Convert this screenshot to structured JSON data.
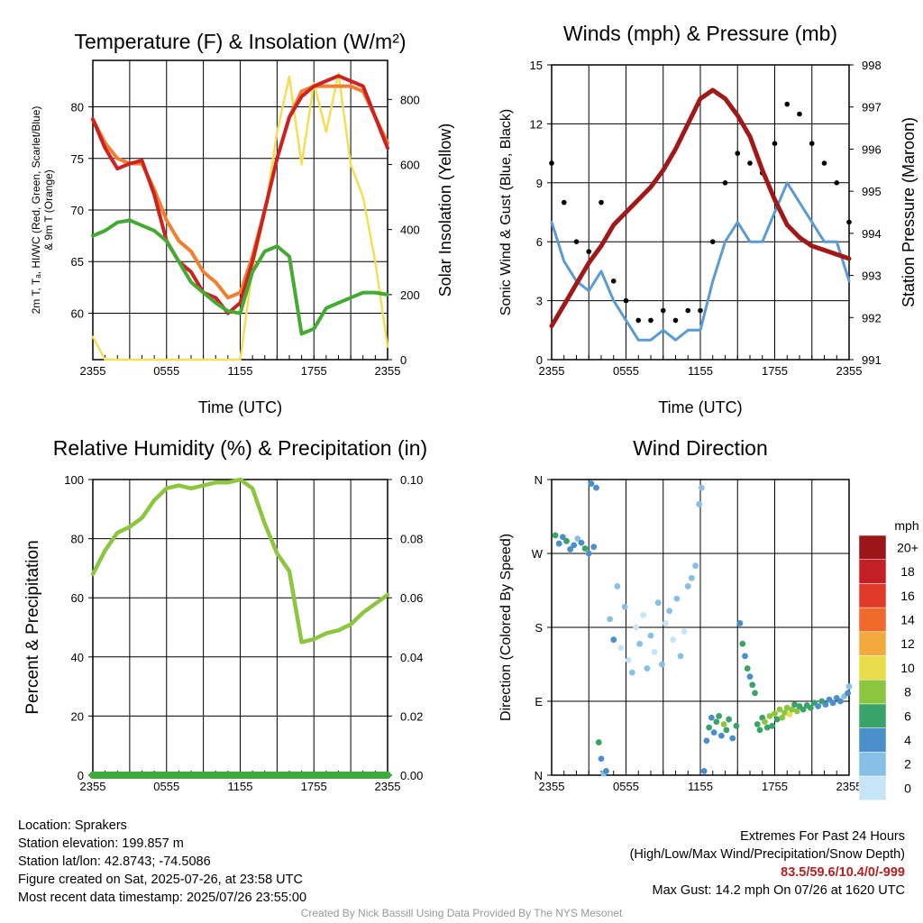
{
  "chart_data": [
    {
      "type": "line",
      "title": "Temperature (F) & Insolation (W/m²)",
      "xlabel": "Time (UTC)",
      "ylabel_left_line1": "2m T, Tₐ, HI/WC (Red, Green, Scarlet/Blue)",
      "ylabel_left_line2": "& 9m T (Orange)",
      "ylabel_right": "Solar Insolation (Yellow)",
      "xticks": [
        "2355",
        "0555",
        "1155",
        "1755",
        "2355"
      ],
      "ylim_left": [
        55.5,
        84.5
      ],
      "yticks_left": [
        60,
        65,
        70,
        75,
        80
      ],
      "ylim_right": [
        0,
        920
      ],
      "yticks_right": [
        0,
        200,
        400,
        600,
        800
      ],
      "x": [
        0,
        1,
        2,
        3,
        4,
        5,
        6,
        7,
        8,
        9,
        10,
        11,
        12,
        13,
        14,
        15,
        16,
        17,
        18,
        19,
        20,
        21,
        22,
        23,
        24
      ],
      "series": [
        {
          "color": "#cc2222",
          "axis": "left",
          "values": [
            78.8,
            76,
            74,
            74.5,
            74.8,
            71.5,
            67,
            65,
            64,
            62,
            61.5,
            60,
            61,
            65,
            70,
            75,
            79,
            81,
            82,
            82.5,
            83,
            82.5,
            82,
            79,
            76
          ]
        },
        {
          "color": "#f08030",
          "axis": "left",
          "values": [
            78.8,
            76.5,
            75,
            74.5,
            74.5,
            72,
            69,
            67,
            66,
            64,
            63,
            61.5,
            62,
            65.5,
            70,
            75,
            79,
            81.5,
            82,
            82,
            82,
            82,
            81.5,
            79,
            76.5
          ]
        },
        {
          "color": "#44aa33",
          "axis": "left",
          "values": [
            67.5,
            68,
            68.8,
            69,
            68.5,
            68,
            67,
            65,
            63,
            62,
            61,
            60.2,
            60,
            64,
            66,
            66.5,
            65.5,
            58,
            58.5,
            60.5,
            61,
            61.5,
            62,
            62,
            61.8
          ]
        },
        {
          "color": "#f5dd55",
          "axis": "right",
          "values": [
            70,
            0,
            0,
            0,
            0,
            0,
            0,
            0,
            0,
            0,
            0,
            0,
            0,
            280,
            450,
            700,
            870,
            600,
            850,
            700,
            880,
            600,
            500,
            300,
            40
          ]
        }
      ]
    },
    {
      "type": "line",
      "title": "Winds (mph) & Pressure (mb)",
      "xlabel": "Time (UTC)",
      "ylabel_left": "Sonic Wind & Gust (Blue, Black)",
      "ylabel_right": "Station Pressure (Maroon)",
      "xticks": [
        "2355",
        "0555",
        "1155",
        "1755",
        "2355"
      ],
      "ylim_left": [
        0,
        15
      ],
      "yticks_left": [
        0,
        3,
        6,
        9,
        12,
        15
      ],
      "ylim_right": [
        991,
        998
      ],
      "yticks_right": [
        991,
        992,
        993,
        994,
        995,
        996,
        997,
        998
      ],
      "x": [
        0,
        1,
        2,
        3,
        4,
        5,
        6,
        7,
        8,
        9,
        10,
        11,
        12,
        13,
        14,
        15,
        16,
        17,
        18,
        19,
        20,
        21,
        22,
        23,
        24
      ],
      "series": [
        {
          "color": "#5b9bd5",
          "axis": "left",
          "values": [
            7,
            5,
            4,
            3.5,
            4.5,
            3,
            2,
            1,
            1,
            1.5,
            1,
            1.5,
            1.5,
            4,
            6,
            7,
            6,
            6,
            7.5,
            9,
            8,
            7,
            6,
            6,
            4
          ]
        },
        {
          "color": "#000000",
          "axis": "left",
          "values": [
            10,
            8,
            6,
            5.5,
            8,
            4,
            3,
            2,
            2,
            2.5,
            2,
            2.5,
            2.5,
            6,
            9,
            10.5,
            10,
            9.5,
            11,
            13,
            12.5,
            11,
            10,
            9,
            7
          ]
        },
        {
          "color": "#a01818",
          "axis": "right",
          "values": [
            991.8,
            992.3,
            992.8,
            993.3,
            993.7,
            994.2,
            994.5,
            994.8,
            995.1,
            995.5,
            996,
            996.6,
            997.2,
            997.4,
            997.2,
            996.8,
            996.3,
            995.5,
            994.8,
            994.2,
            993.9,
            993.7,
            993.6,
            993.5,
            993.4
          ]
        }
      ]
    },
    {
      "type": "line",
      "title": "Relative Humidity (%) & Precipitation (in)",
      "ylabel_left": "Percent & Precipitation",
      "xticks": [
        "2355",
        "0555",
        "1155",
        "1755",
        "2355"
      ],
      "ylim_left": [
        0,
        100
      ],
      "yticks_left": [
        0,
        20,
        40,
        60,
        80,
        100
      ],
      "ylim_right": [
        0,
        0.1
      ],
      "yticks_right": [
        "0.00",
        "0.02",
        "0.04",
        "0.06",
        "0.08",
        "0.10"
      ],
      "x": [
        0,
        1,
        2,
        3,
        4,
        5,
        6,
        7,
        8,
        9,
        10,
        11,
        12,
        13,
        14,
        15,
        16,
        17,
        18,
        19,
        20,
        21,
        22,
        23,
        24
      ],
      "series": [
        {
          "color": "#8cc63f",
          "axis": "left",
          "values": [
            68,
            76,
            82,
            84,
            87,
            93,
            97,
            98,
            97,
            98,
            99,
            99,
            100,
            97,
            85,
            75,
            69,
            45,
            46,
            48,
            49,
            51,
            55,
            58,
            61
          ]
        },
        {
          "color": "#3daa3d",
          "axis": "right",
          "values": [
            0,
            0,
            0,
            0,
            0,
            0,
            0,
            0,
            0,
            0,
            0,
            0,
            0,
            0,
            0,
            0,
            0,
            0,
            0,
            0,
            0,
            0,
            0,
            0,
            0
          ]
        }
      ]
    },
    {
      "type": "scatter",
      "title": "Wind Direction",
      "ylabel_left": "Direction (Colored By Speed)",
      "xticks": [
        "2355",
        "0555",
        "1155",
        "1755",
        "2355"
      ],
      "yticks_left": [
        "N",
        "E",
        "S",
        "W",
        "N"
      ],
      "ylim_left": [
        0,
        360
      ],
      "colorbar": {
        "title": "mph",
        "labels": [
          "0",
          "2",
          "4",
          "6",
          "8",
          "10",
          "12",
          "14",
          "16",
          "18",
          "20+"
        ],
        "colors": [
          "#c6e6f7",
          "#86c0e6",
          "#4a8fcc",
          "#3aa36a",
          "#8cc63f",
          "#e8dc4a",
          "#f4a93c",
          "#ef6a2a",
          "#e03a2a",
          "#c41f24",
          "#9b1618"
        ]
      },
      "points": [
        {
          "x": 0.3,
          "dir": 292,
          "speed": 6
        },
        {
          "x": 0.6,
          "dir": 282,
          "speed": 5
        },
        {
          "x": 0.9,
          "dir": 290,
          "speed": 4
        },
        {
          "x": 1.2,
          "dir": 285,
          "speed": 7
        },
        {
          "x": 1.5,
          "dir": 275,
          "speed": 4
        },
        {
          "x": 1.8,
          "dir": 280,
          "speed": 5
        },
        {
          "x": 2.1,
          "dir": 288,
          "speed": 3
        },
        {
          "x": 2.4,
          "dir": 283,
          "speed": 4
        },
        {
          "x": 2.7,
          "dir": 276,
          "speed": 6
        },
        {
          "x": 3.0,
          "dir": 270,
          "speed": 4
        },
        {
          "x": 3.2,
          "dir": 355,
          "speed": 5
        },
        {
          "x": 3.4,
          "dir": 278,
          "speed": 5
        },
        {
          "x": 3.6,
          "dir": 350,
          "speed": 4
        },
        {
          "x": 3.8,
          "dir": 40,
          "speed": 6
        },
        {
          "x": 4.0,
          "dir": 20,
          "speed": 4
        },
        {
          "x": 4.2,
          "dir": 2,
          "speed": 3
        },
        {
          "x": 4.4,
          "dir": 5,
          "speed": 4
        },
        {
          "x": 4.7,
          "dir": 190,
          "speed": 2
        },
        {
          "x": 5.0,
          "dir": 165,
          "speed": 4
        },
        {
          "x": 5.3,
          "dir": 230,
          "speed": 2
        },
        {
          "x": 5.6,
          "dir": 155,
          "speed": 1
        },
        {
          "x": 5.9,
          "dir": 205,
          "speed": 2
        },
        {
          "x": 6.2,
          "dir": 140,
          "speed": 1
        },
        {
          "x": 6.5,
          "dir": 125,
          "speed": 2
        },
        {
          "x": 6.8,
          "dir": 180,
          "speed": 1
        },
        {
          "x": 7.1,
          "dir": 160,
          "speed": 2
        },
        {
          "x": 7.4,
          "dir": 195,
          "speed": 1
        },
        {
          "x": 7.7,
          "dir": 130,
          "speed": 3
        },
        {
          "x": 8.0,
          "dir": 170,
          "speed": 2
        },
        {
          "x": 8.3,
          "dir": 150,
          "speed": 1
        },
        {
          "x": 8.6,
          "dir": 210,
          "speed": 2
        },
        {
          "x": 8.9,
          "dir": 135,
          "speed": 2
        },
        {
          "x": 9.2,
          "dir": 185,
          "speed": 1
        },
        {
          "x": 9.5,
          "dir": 200,
          "speed": 3
        },
        {
          "x": 9.8,
          "dir": 165,
          "speed": 1
        },
        {
          "x": 10.1,
          "dir": 215,
          "speed": 2
        },
        {
          "x": 10.4,
          "dir": 145,
          "speed": 2
        },
        {
          "x": 10.7,
          "dir": 175,
          "speed": 1
        },
        {
          "x": 11.0,
          "dir": 230,
          "speed": 2
        },
        {
          "x": 11.3,
          "dir": 240,
          "speed": 2
        },
        {
          "x": 11.6,
          "dir": 255,
          "speed": 3
        },
        {
          "x": 11.9,
          "dir": 330,
          "speed": 2
        },
        {
          "x": 12.1,
          "dir": 350,
          "speed": 2
        },
        {
          "x": 12.3,
          "dir": 5,
          "speed": 4
        },
        {
          "x": 12.5,
          "dir": 42,
          "speed": 5
        },
        {
          "x": 12.7,
          "dir": 58,
          "speed": 6
        },
        {
          "x": 12.9,
          "dir": 70,
          "speed": 5
        },
        {
          "x": 13.1,
          "dir": 52,
          "speed": 4
        },
        {
          "x": 13.3,
          "dir": 65,
          "speed": 7
        },
        {
          "x": 13.5,
          "dir": 72,
          "speed": 6
        },
        {
          "x": 13.7,
          "dir": 48,
          "speed": 5
        },
        {
          "x": 13.9,
          "dir": 62,
          "speed": 8
        },
        {
          "x": 14.1,
          "dir": 55,
          "speed": 6
        },
        {
          "x": 14.3,
          "dir": 68,
          "speed": 7
        },
        {
          "x": 14.6,
          "dir": 45,
          "speed": 4
        },
        {
          "x": 14.9,
          "dir": 60,
          "speed": 6
        },
        {
          "x": 15.2,
          "dir": 185,
          "speed": 5
        },
        {
          "x": 15.4,
          "dir": 160,
          "speed": 6
        },
        {
          "x": 15.6,
          "dir": 145,
          "speed": 5
        },
        {
          "x": 15.8,
          "dir": 130,
          "speed": 6
        },
        {
          "x": 16.0,
          "dir": 120,
          "speed": 5
        },
        {
          "x": 16.2,
          "dir": 110,
          "speed": 6
        },
        {
          "x": 16.4,
          "dir": 100,
          "speed": 7
        },
        {
          "x": 16.6,
          "dir": 62,
          "speed": 6
        },
        {
          "x": 16.8,
          "dir": 55,
          "speed": 7
        },
        {
          "x": 17.0,
          "dir": 70,
          "speed": 6
        },
        {
          "x": 17.2,
          "dir": 65,
          "speed": 8
        },
        {
          "x": 17.4,
          "dir": 58,
          "speed": 7
        },
        {
          "x": 17.6,
          "dir": 72,
          "speed": 8
        },
        {
          "x": 17.8,
          "dir": 60,
          "speed": 6
        },
        {
          "x": 18.0,
          "dir": 75,
          "speed": 8
        },
        {
          "x": 18.2,
          "dir": 68,
          "speed": 7
        },
        {
          "x": 18.4,
          "dir": 80,
          "speed": 9
        },
        {
          "x": 18.6,
          "dir": 70,
          "speed": 8
        },
        {
          "x": 18.8,
          "dir": 76,
          "speed": 9
        },
        {
          "x": 19.0,
          "dir": 82,
          "speed": 8
        },
        {
          "x": 19.2,
          "dir": 74,
          "speed": 10
        },
        {
          "x": 19.4,
          "dir": 80,
          "speed": 8
        },
        {
          "x": 19.6,
          "dir": 86,
          "speed": 7
        },
        {
          "x": 19.8,
          "dir": 78,
          "speed": 8
        },
        {
          "x": 20.0,
          "dir": 84,
          "speed": 7
        },
        {
          "x": 20.3,
          "dir": 80,
          "speed": 6
        },
        {
          "x": 20.6,
          "dir": 85,
          "speed": 7
        },
        {
          "x": 20.9,
          "dir": 82,
          "speed": 6
        },
        {
          "x": 21.2,
          "dir": 88,
          "speed": 6
        },
        {
          "x": 21.5,
          "dir": 84,
          "speed": 5
        },
        {
          "x": 21.8,
          "dir": 90,
          "speed": 6
        },
        {
          "x": 22.1,
          "dir": 86,
          "speed": 5
        },
        {
          "x": 22.4,
          "dir": 92,
          "speed": 5
        },
        {
          "x": 22.7,
          "dir": 88,
          "speed": 4
        },
        {
          "x": 23.0,
          "dir": 94,
          "speed": 5
        },
        {
          "x": 23.3,
          "dir": 90,
          "speed": 4
        },
        {
          "x": 23.6,
          "dir": 96,
          "speed": 3
        },
        {
          "x": 23.9,
          "dir": 100,
          "speed": 4
        },
        {
          "x": 24.0,
          "dir": 108,
          "speed": 3
        }
      ]
    }
  ],
  "footer": {
    "location": "Location: Sprakers",
    "elevation": "Station elevation: 199.857 m",
    "latlon": "Station lat/lon: 42.8743; -74.5086",
    "created": "Figure created on Sat, 2025-07-26, at 23:58 UTC",
    "recent": "Most recent data timestamp: 2025/07/26 23:55:00",
    "extremes_title": "Extremes For Past 24 Hours",
    "extremes_legend": "(High/Low/Max Wind/Precipitation/Snow Depth)",
    "extremes_values": "83.5/59.6/10.4/0/-999",
    "max_gust": "Max Gust: 14.2 mph On 07/26 at 1620 UTC",
    "credit": "Created By Nick Bassill Using Data Provided By The NYS Mesonet"
  }
}
